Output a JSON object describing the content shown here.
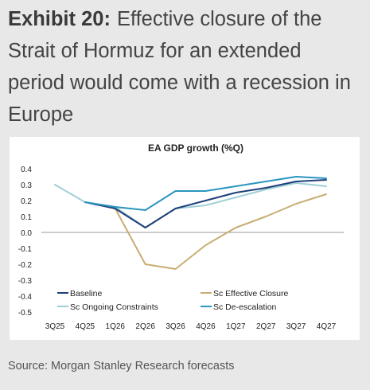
{
  "header": {
    "exhibit_label": "Exhibit 20:",
    "title_text": "Effective closure of the Strait of Hormuz for an extended period would come with a recession in Europe"
  },
  "footer": {
    "source": "Source: Morgan Stanley Research forecasts"
  },
  "chart_data": {
    "type": "line",
    "title": "EA GDP growth (%Q)",
    "xlabel": "",
    "ylabel": "",
    "categories": [
      "3Q25",
      "4Q25",
      "1Q26",
      "2Q26",
      "3Q26",
      "4Q26",
      "1Q27",
      "2Q27",
      "3Q27",
      "4Q27"
    ],
    "ylim": [
      -0.5,
      0.4
    ],
    "yticks": [
      0.4,
      0.3,
      0.2,
      0.1,
      0.0,
      -0.1,
      -0.2,
      -0.3,
      -0.4,
      -0.5
    ],
    "ytick_labels": [
      "0.4",
      "0.3",
      "0.2",
      "0.1",
      "0.0",
      "-0.1",
      "-0.2",
      "-0.3",
      "-0.4",
      "-0.5"
    ],
    "grid": false,
    "legend_position": "bottom",
    "series": [
      {
        "name": "Baseline",
        "color": "#1f3f7a",
        "values": [
          null,
          0.19,
          0.15,
          0.03,
          0.15,
          0.2,
          0.25,
          0.28,
          0.32,
          0.33
        ]
      },
      {
        "name": "Sc Ongoing Constraints",
        "color": "#9fd0d6",
        "values": [
          0.3,
          0.19,
          0.16,
          0.03,
          0.15,
          0.17,
          0.22,
          0.27,
          0.31,
          0.29
        ]
      },
      {
        "name": "Sc Effective Closure",
        "color": "#c8ad72",
        "values": [
          null,
          null,
          0.15,
          -0.2,
          -0.23,
          -0.08,
          0.03,
          0.1,
          0.18,
          0.24
        ]
      },
      {
        "name": "Sc De-escalation",
        "color": "#2a95bf",
        "values": [
          null,
          0.19,
          0.16,
          0.14,
          0.26,
          0.26,
          0.29,
          0.32,
          0.35,
          0.34
        ]
      }
    ]
  }
}
